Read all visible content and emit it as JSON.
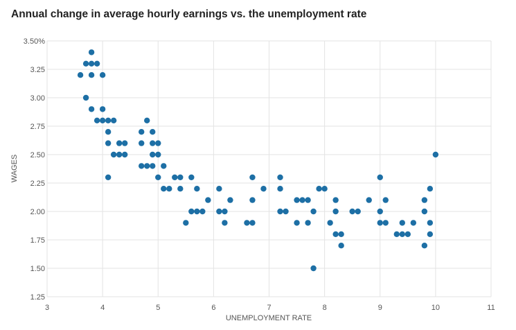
{
  "chart_data": {
    "type": "scatter",
    "title": "Annual change in average hourly earnings vs. the unemployment rate",
    "xlabel": "UNEMPLOYMENT RATE",
    "ylabel": "WAGES",
    "xlim": [
      3,
      11
    ],
    "ylim": [
      1.25,
      3.5
    ],
    "x_ticks": [
      "3",
      "4",
      "5",
      "6",
      "7",
      "8",
      "9",
      "10",
      "11"
    ],
    "y_ticks": [
      "3.50%",
      "3.25",
      "3.00",
      "2.75",
      "2.50",
      "2.25",
      "2.00",
      "1.75",
      "1.50",
      "1.25"
    ],
    "grid": true,
    "legend": "none",
    "colors": {
      "point": "#1d6fa5",
      "grid": "#e3e3e3"
    },
    "points": [
      [
        3.6,
        3.2
      ],
      [
        3.7,
        3.3
      ],
      [
        3.7,
        3.0
      ],
      [
        3.8,
        3.4
      ],
      [
        3.8,
        3.3
      ],
      [
        3.8,
        3.2
      ],
      [
        3.8,
        2.9
      ],
      [
        3.9,
        3.3
      ],
      [
        3.9,
        2.8
      ],
      [
        4.0,
        3.2
      ],
      [
        4.0,
        2.9
      ],
      [
        4.0,
        2.8
      ],
      [
        4.1,
        2.8
      ],
      [
        4.1,
        2.7
      ],
      [
        4.1,
        2.6
      ],
      [
        4.1,
        2.3
      ],
      [
        4.2,
        2.8
      ],
      [
        4.2,
        2.5
      ],
      [
        4.3,
        2.6
      ],
      [
        4.3,
        2.5
      ],
      [
        4.4,
        2.6
      ],
      [
        4.4,
        2.5
      ],
      [
        4.7,
        2.7
      ],
      [
        4.7,
        2.6
      ],
      [
        4.7,
        2.4
      ],
      [
        4.8,
        2.8
      ],
      [
        4.8,
        2.4
      ],
      [
        4.9,
        2.7
      ],
      [
        4.9,
        2.6
      ],
      [
        4.9,
        2.5
      ],
      [
        4.9,
        2.4
      ],
      [
        5.0,
        2.6
      ],
      [
        5.0,
        2.5
      ],
      [
        5.0,
        2.3
      ],
      [
        5.1,
        2.4
      ],
      [
        5.1,
        2.2
      ],
      [
        5.2,
        2.2
      ],
      [
        5.3,
        2.3
      ],
      [
        5.4,
        2.3
      ],
      [
        5.4,
        2.2
      ],
      [
        5.5,
        1.9
      ],
      [
        5.6,
        2.3
      ],
      [
        5.6,
        2.0
      ],
      [
        5.7,
        2.2
      ],
      [
        5.7,
        2.0
      ],
      [
        5.8,
        2.0
      ],
      [
        5.9,
        2.1
      ],
      [
        6.1,
        2.2
      ],
      [
        6.1,
        2.0
      ],
      [
        6.2,
        2.0
      ],
      [
        6.2,
        1.9
      ],
      [
        6.3,
        2.1
      ],
      [
        6.6,
        1.9
      ],
      [
        6.7,
        2.3
      ],
      [
        6.7,
        2.1
      ],
      [
        6.7,
        1.9
      ],
      [
        6.9,
        2.2
      ],
      [
        7.2,
        2.3
      ],
      [
        7.2,
        2.2
      ],
      [
        7.2,
        2.0
      ],
      [
        7.3,
        2.0
      ],
      [
        7.5,
        2.1
      ],
      [
        7.5,
        1.9
      ],
      [
        7.6,
        2.1
      ],
      [
        7.7,
        2.1
      ],
      [
        7.7,
        1.9
      ],
      [
        7.8,
        2.0
      ],
      [
        7.8,
        1.5
      ],
      [
        7.9,
        2.2
      ],
      [
        8.0,
        2.2
      ],
      [
        8.1,
        1.9
      ],
      [
        8.2,
        2.1
      ],
      [
        8.2,
        2.0
      ],
      [
        8.2,
        1.8
      ],
      [
        8.3,
        1.8
      ],
      [
        8.3,
        1.7
      ],
      [
        8.5,
        2.0
      ],
      [
        8.6,
        2.0
      ],
      [
        8.8,
        2.1
      ],
      [
        9.0,
        2.3
      ],
      [
        9.0,
        2.0
      ],
      [
        9.0,
        1.9
      ],
      [
        9.1,
        2.1
      ],
      [
        9.1,
        1.9
      ],
      [
        9.3,
        1.8
      ],
      [
        9.4,
        1.9
      ],
      [
        9.4,
        1.8
      ],
      [
        9.5,
        1.8
      ],
      [
        9.6,
        1.9
      ],
      [
        9.8,
        2.1
      ],
      [
        9.8,
        2.0
      ],
      [
        9.8,
        1.7
      ],
      [
        9.9,
        2.2
      ],
      [
        9.9,
        1.9
      ],
      [
        9.9,
        1.8
      ],
      [
        10.0,
        2.5
      ]
    ]
  }
}
